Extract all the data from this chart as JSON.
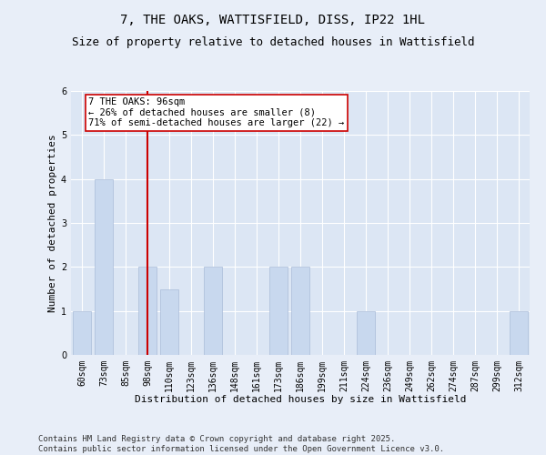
{
  "title_line1": "7, THE OAKS, WATTISFIELD, DISS, IP22 1HL",
  "title_line2": "Size of property relative to detached houses in Wattisfield",
  "xlabel": "Distribution of detached houses by size in Wattisfield",
  "ylabel": "Number of detached properties",
  "categories": [
    "60sqm",
    "73sqm",
    "85sqm",
    "98sqm",
    "110sqm",
    "123sqm",
    "136sqm",
    "148sqm",
    "161sqm",
    "173sqm",
    "186sqm",
    "199sqm",
    "211sqm",
    "224sqm",
    "236sqm",
    "249sqm",
    "262sqm",
    "274sqm",
    "287sqm",
    "299sqm",
    "312sqm"
  ],
  "values": [
    1,
    4,
    0,
    2,
    1.5,
    0,
    2,
    0,
    0,
    2,
    2,
    0,
    0,
    1,
    0,
    0,
    0,
    0,
    0,
    0,
    1
  ],
  "bar_color": "#c8d8ee",
  "bar_edge_color": "#aabcd8",
  "vline_x_index": 3,
  "vline_color": "#cc0000",
  "annotation_text": "7 THE OAKS: 96sqm\n← 26% of detached houses are smaller (8)\n71% of semi-detached houses are larger (22) →",
  "annotation_box_color": "#ffffff",
  "annotation_box_edge": "#cc0000",
  "ylim": [
    0,
    6
  ],
  "yticks": [
    0,
    1,
    2,
    3,
    4,
    5,
    6
  ],
  "footer_text": "Contains HM Land Registry data © Crown copyright and database right 2025.\nContains public sector information licensed under the Open Government Licence v3.0.",
  "bg_color": "#e8eef8",
  "plot_bg_color": "#dce6f4",
  "grid_color": "#ffffff",
  "title_fontsize": 10,
  "subtitle_fontsize": 9,
  "axis_label_fontsize": 8,
  "tick_fontsize": 7,
  "annot_fontsize": 7.5,
  "footer_fontsize": 6.5
}
